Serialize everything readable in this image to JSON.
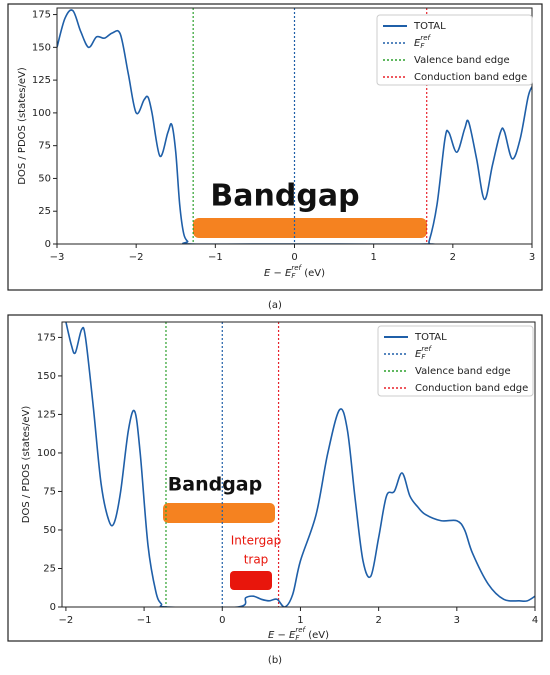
{
  "chart_data": [
    {
      "type": "line",
      "panel_label": "(a)",
      "ylabel": "DOS / PDOS (states/eV)",
      "xlabel_parts": [
        "E − E",
        "F",
        "ref",
        " (eV)"
      ],
      "xlim": [
        -3,
        3
      ],
      "ylim": [
        0,
        180
      ],
      "xticks": [
        {
          "value": -3,
          "label": "−3"
        },
        {
          "value": -2,
          "label": "−2"
        },
        {
          "value": -1,
          "label": "−1"
        },
        0,
        1,
        2,
        3
      ],
      "yticks": [
        0,
        25,
        50,
        75,
        100,
        125,
        150,
        175
      ],
      "x": [
        -3,
        -2.9,
        -2.8,
        -2.7,
        -2.6,
        -2.5,
        -2.4,
        -2.3,
        -2.2,
        -2.1,
        -2.0,
        -1.9,
        -1.85,
        -1.8,
        -1.7,
        -1.6,
        -1.55,
        -1.5,
        -1.45,
        -1.4,
        -1.35,
        -1.3,
        0,
        1.65,
        1.7,
        1.8,
        1.9,
        1.95,
        2.05,
        2.15,
        2.2,
        2.3,
        2.4,
        2.5,
        2.6,
        2.65,
        2.75,
        2.85,
        2.95,
        3
      ],
      "series": [
        {
          "name": "TOTAL",
          "color": "#1f5fa8",
          "values": [
            150,
            172,
            178,
            162,
            150,
            158,
            157,
            161,
            160,
            130,
            100,
            110,
            112,
            100,
            67,
            85,
            91,
            70,
            30,
            8,
            2,
            0,
            0,
            0,
            2,
            30,
            80,
            85,
            70,
            88,
            93,
            65,
            34,
            60,
            85,
            86,
            65,
            80,
            112,
            120
          ]
        }
      ],
      "vlines": [
        {
          "label_parts": [
            "E",
            "F",
            "ref"
          ],
          "x": 0,
          "color": "#1f5fa8"
        },
        {
          "label": "Valence band edge",
          "x": -1.28,
          "color": "#2ca02c"
        },
        {
          "label": "Conduction band edge",
          "x": 1.67,
          "color": "#e8212a"
        }
      ],
      "annotations": [
        "Bandgap"
      ]
    },
    {
      "type": "line",
      "panel_label": "(b)",
      "ylabel": "DOS / PDOS (states/eV)",
      "xlabel_parts": [
        "E − E",
        "F",
        "ref",
        " (eV)"
      ],
      "xlim": [
        -2.05,
        4
      ],
      "ylim": [
        0,
        185
      ],
      "xticks": [
        {
          "value": -2,
          "label": "−2"
        },
        {
          "value": -1,
          "label": "−1"
        },
        0,
        1,
        2,
        3,
        4
      ],
      "yticks": [
        0,
        25,
        50,
        75,
        100,
        125,
        150,
        175
      ],
      "x": [
        -2,
        -1.93,
        -1.88,
        -1.8,
        -1.75,
        -1.65,
        -1.55,
        -1.45,
        -1.38,
        -1.3,
        -1.2,
        -1.12,
        -1.05,
        -0.95,
        -0.85,
        -0.78,
        -0.7,
        0.2,
        0.3,
        0.4,
        0.5,
        0.6,
        0.7,
        0.8,
        0.9,
        1.0,
        1.2,
        1.35,
        1.5,
        1.6,
        1.7,
        1.8,
        1.9,
        2.0,
        2.1,
        2.2,
        2.3,
        2.4,
        2.5,
        2.6,
        2.8,
        3.0,
        3.1,
        3.2,
        3.4,
        3.6,
        3.8,
        3.9,
        4.0
      ],
      "series": [
        {
          "name": "TOTAL",
          "color": "#1f5fa8",
          "values": [
            185,
            170,
            165,
            180,
            175,
            130,
            80,
            56,
            55,
            75,
            115,
            127,
            100,
            40,
            10,
            2,
            0,
            0,
            6,
            7,
            5,
            4,
            5,
            0,
            8,
            30,
            60,
            100,
            128,
            115,
            70,
            30,
            20,
            45,
            72,
            75,
            87,
            72,
            65,
            60,
            56,
            56,
            50,
            35,
            15,
            5,
            4,
            4,
            7
          ]
        }
      ],
      "vlines": [
        {
          "label_parts": [
            "E",
            "F",
            "ref"
          ],
          "x": 0,
          "color": "#1f5fa8"
        },
        {
          "label": "Valence band edge",
          "x": -0.72,
          "color": "#2ca02c"
        },
        {
          "label": "Conduction band edge",
          "x": 0.72,
          "color": "#e8212a"
        }
      ],
      "annotations": [
        "Bandgap",
        "Intergap",
        "trap"
      ]
    }
  ]
}
